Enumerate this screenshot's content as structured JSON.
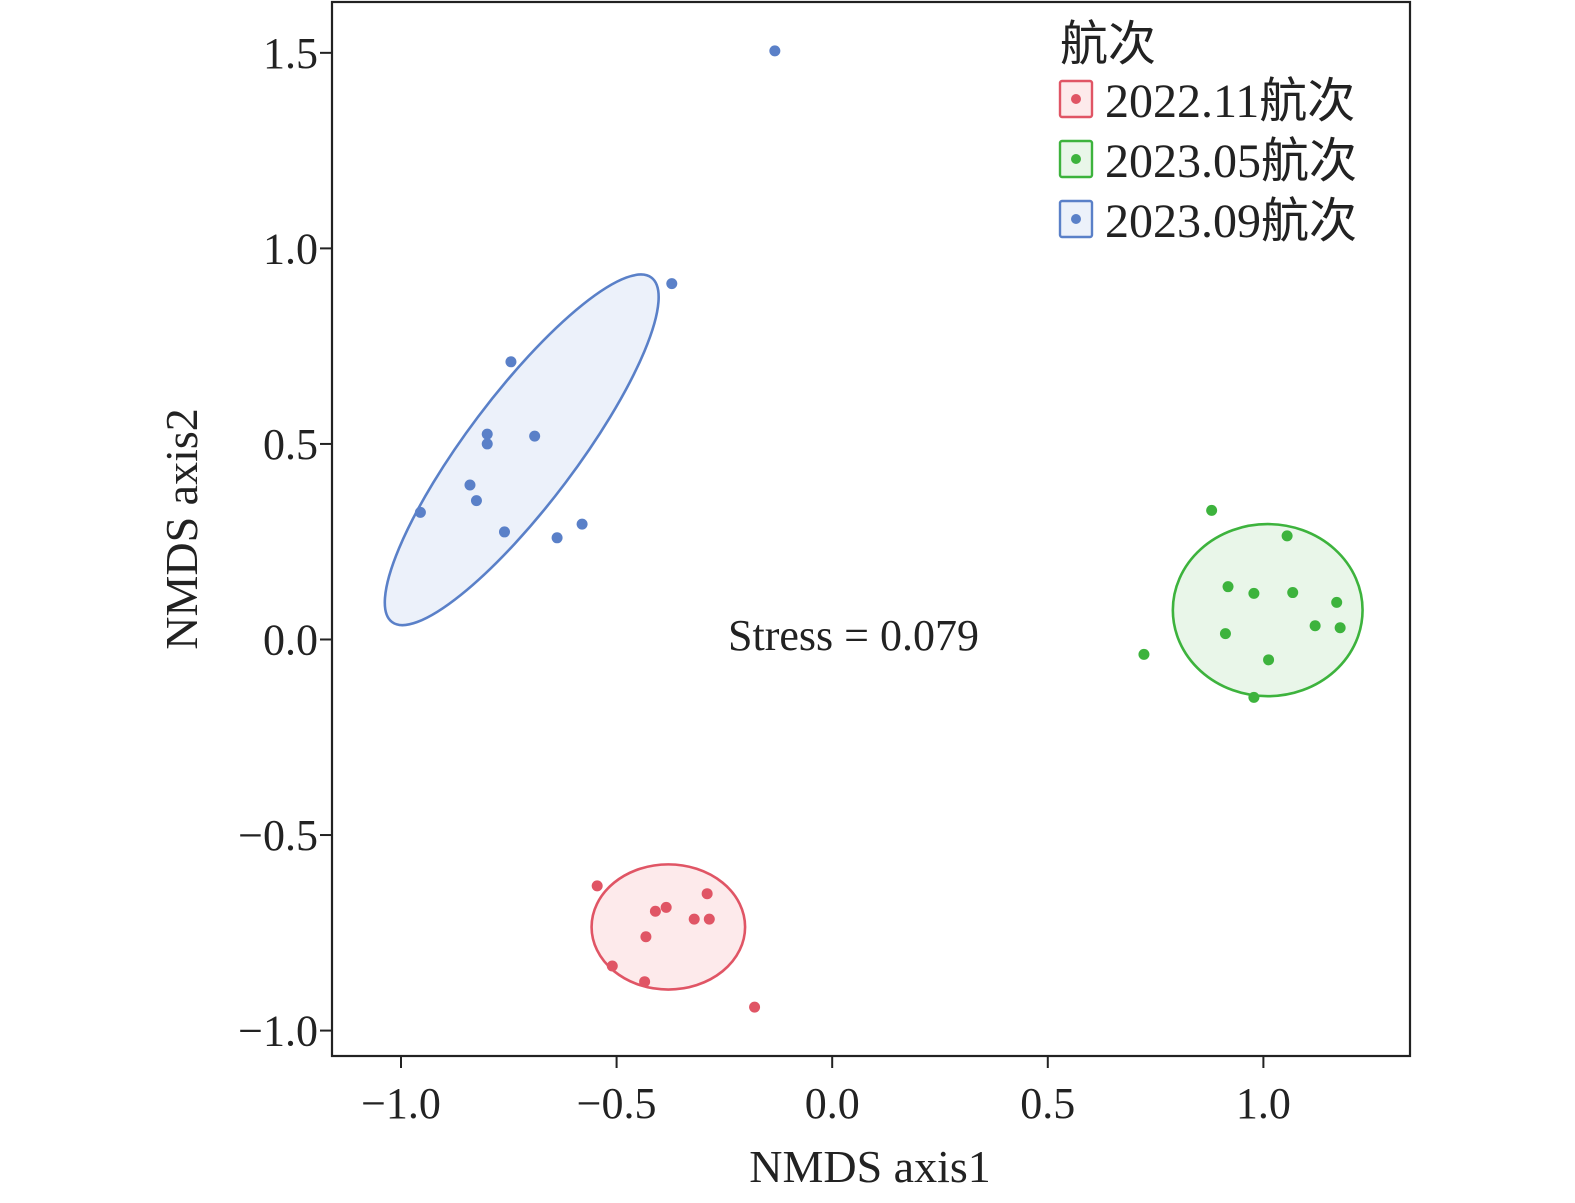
{
  "chart_data": {
    "type": "scatter",
    "title": "",
    "xlabel": "NMDS axis1",
    "ylabel": "NMDS axis2",
    "xlim": [
      -1.16,
      1.34
    ],
    "ylim": [
      -1.065,
      1.63
    ],
    "xticks": [
      -1.0,
      -0.5,
      0.0,
      0.5,
      1.0
    ],
    "yticks": [
      -1.0,
      -0.5,
      0.0,
      0.5,
      1.0,
      1.5
    ],
    "xtick_labels": [
      "−1.0",
      "−0.5",
      "0.0",
      "0.5",
      "1.0"
    ],
    "ytick_labels": [
      "−1.0",
      "−0.5",
      "0.0",
      "0.5",
      "1.0",
      "1.5"
    ],
    "grid": false,
    "legend": {
      "title": "航次",
      "position": "top-right"
    },
    "annotation": "Stress = 0.079",
    "series": [
      {
        "name": "2022.11航次",
        "color": "#e05565",
        "fill": "#fdeaeb",
        "points": [
          [
            -0.545,
            -0.63
          ],
          [
            -0.41,
            -0.695
          ],
          [
            -0.385,
            -0.685
          ],
          [
            -0.29,
            -0.65
          ],
          [
            -0.32,
            -0.715
          ],
          [
            -0.285,
            -0.715
          ],
          [
            -0.432,
            -0.76
          ],
          [
            -0.51,
            -0.835
          ],
          [
            -0.435,
            -0.875
          ],
          [
            -0.18,
            -0.94
          ]
        ],
        "ellipse": {
          "cx": -0.38,
          "cy": -0.735,
          "rx": 0.178,
          "ry": 0.16,
          "angle": 0
        }
      },
      {
        "name": "2023.05航次",
        "color": "#3db33d",
        "fill": "#e9f6e9",
        "points": [
          [
            0.88,
            0.33
          ],
          [
            1.055,
            0.265
          ],
          [
            0.918,
            0.135
          ],
          [
            0.978,
            0.118
          ],
          [
            1.068,
            0.12
          ],
          [
            1.17,
            0.095
          ],
          [
            1.12,
            0.035
          ],
          [
            1.178,
            0.03
          ],
          [
            0.912,
            0.015
          ],
          [
            1.012,
            -0.052
          ],
          [
            0.723,
            -0.038
          ],
          [
            0.978,
            -0.148
          ]
        ],
        "ellipse": {
          "cx": 1.01,
          "cy": 0.075,
          "rx": 0.22,
          "ry": 0.22,
          "angle": 0
        }
      },
      {
        "name": "2023.09航次",
        "color": "#5a80c8",
        "fill": "#ecf1fa",
        "points": [
          [
            -0.133,
            1.505
          ],
          [
            -0.372,
            0.91
          ],
          [
            -0.745,
            0.71
          ],
          [
            -0.69,
            0.52
          ],
          [
            -0.8,
            0.525
          ],
          [
            -0.8,
            0.5
          ],
          [
            -0.84,
            0.395
          ],
          [
            -0.825,
            0.355
          ],
          [
            -0.76,
            0.275
          ],
          [
            -0.58,
            0.295
          ],
          [
            -0.638,
            0.26
          ],
          [
            -0.955,
            0.325
          ]
        ],
        "ellipse": {
          "cx": -0.72,
          "cy": 0.485,
          "rx": 0.5,
          "ry": 0.14,
          "angle": 53
        }
      }
    ]
  }
}
